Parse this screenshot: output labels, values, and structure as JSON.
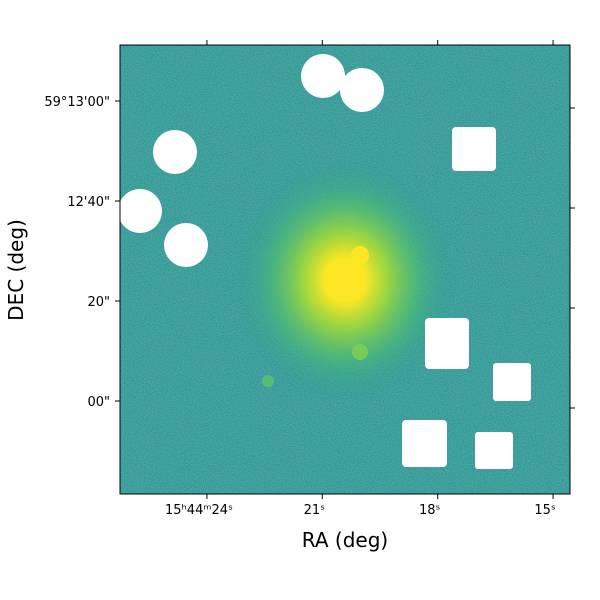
{
  "chart_data": {
    "type": "image",
    "xlabel": "RA (deg)",
    "ylabel": "DEC (deg)",
    "xlim": [
      26.26,
      14.56
    ],
    "xticks": [
      {
        "value": 24,
        "label": "15ʰ44ᵐ24ˢ"
      },
      {
        "value": 21,
        "label": "21ˢ"
      },
      {
        "value": 18,
        "label": "18ˢ"
      },
      {
        "value": 15,
        "label": "15ˢ"
      }
    ],
    "ylim": [
      -18.6,
      71.2
    ],
    "yticks": [
      {
        "value": 60,
        "label": "59°13'00\""
      },
      {
        "value": 40,
        "label": "12'40\""
      },
      {
        "value": 20,
        "label": "20\""
      },
      {
        "value": 0,
        "label": "00\""
      }
    ]
  }
}
